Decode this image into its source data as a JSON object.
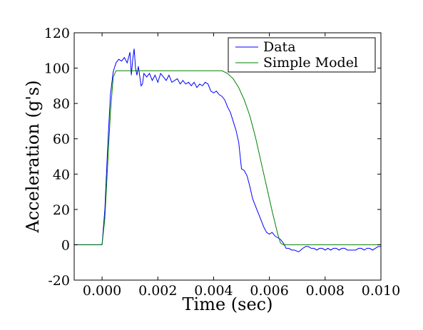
{
  "chart_data": {
    "type": "line",
    "title": "",
    "xlabel": "Time (sec)",
    "ylabel": "Acceleration (g's)",
    "xlim": [
      -0.001,
      0.01
    ],
    "ylim": [
      -20,
      120
    ],
    "xticks": [
      0.0,
      0.002,
      0.004,
      0.006,
      0.008,
      0.01
    ],
    "xtick_labels": [
      "0.000",
      "0.002",
      "0.004",
      "0.006",
      "0.008",
      "0.010"
    ],
    "yticks": [
      -20,
      0,
      20,
      40,
      60,
      80,
      100,
      120
    ],
    "ytick_labels": [
      "-20",
      "0",
      "20",
      "40",
      "60",
      "80",
      "100",
      "120"
    ],
    "grid": false,
    "legend_position": "top-right",
    "series": [
      {
        "name": "Data",
        "color": "#0000ff",
        "x": [
          -0.001,
          -0.0001,
          0.0,
          0.0001,
          0.0002,
          0.0003,
          0.0004,
          0.0005,
          0.0006,
          0.0007,
          0.0008,
          0.0009,
          0.001,
          0.00105,
          0.0011,
          0.00115,
          0.0012,
          0.00125,
          0.0013,
          0.0014,
          0.00145,
          0.0015,
          0.0016,
          0.0017,
          0.0018,
          0.0019,
          0.002,
          0.0021,
          0.0022,
          0.0023,
          0.0024,
          0.0025,
          0.0026,
          0.0027,
          0.0028,
          0.0029,
          0.003,
          0.0031,
          0.0032,
          0.0033,
          0.0034,
          0.0035,
          0.0036,
          0.0037,
          0.0038,
          0.0039,
          0.004,
          0.0041,
          0.0042,
          0.0043,
          0.0044,
          0.0045,
          0.0046,
          0.0047,
          0.0048,
          0.0049,
          0.005,
          0.0051,
          0.0052,
          0.0053,
          0.0054,
          0.0055,
          0.0056,
          0.0057,
          0.0058,
          0.0059,
          0.006,
          0.0061,
          0.0062,
          0.0063,
          0.0064,
          0.0065,
          0.0066,
          0.0067,
          0.0068,
          0.0069,
          0.00705,
          0.0072,
          0.0073,
          0.0074,
          0.0075,
          0.0076,
          0.0077,
          0.0078,
          0.0079,
          0.008,
          0.0081,
          0.0082,
          0.0083,
          0.0084,
          0.0085,
          0.0086,
          0.0087,
          0.0088,
          0.0089,
          0.009,
          0.0091,
          0.0092,
          0.0093,
          0.0094,
          0.0095,
          0.0096,
          0.0097,
          0.0098,
          0.0099,
          0.01
        ],
        "y": [
          0,
          0,
          0,
          20,
          55,
          85,
          98,
          103,
          105,
          104,
          106,
          103,
          109,
          96,
          105,
          111,
          100,
          96,
          101,
          90,
          91,
          97,
          95,
          97,
          93,
          96,
          92,
          97,
          95,
          93,
          96,
          92,
          93,
          94,
          91,
          93,
          91,
          92,
          90,
          92,
          89,
          91,
          90,
          92,
          91,
          87,
          86,
          87,
          85,
          84,
          82,
          78,
          75,
          70,
          65,
          58,
          43,
          42,
          39,
          33,
          26,
          22,
          18,
          14,
          10,
          7,
          6,
          7,
          5,
          4,
          3,
          1,
          -2,
          -2,
          -3,
          -3,
          -4,
          -2,
          -1,
          -1,
          -2,
          -2,
          -3,
          -2,
          -2,
          -3,
          -2,
          -3,
          -2,
          -2,
          -3,
          -2,
          -2,
          -3,
          -3,
          -3,
          -3,
          -2,
          -2,
          -3,
          -2,
          -2,
          -3,
          -2,
          -1,
          -1
        ]
      },
      {
        "name": "Simple Model",
        "color": "#008000",
        "x": [
          -0.001,
          -0.0001,
          0.0,
          0.0001,
          0.0002,
          0.0003,
          0.0004,
          0.0005,
          0.0006,
          0.001,
          0.002,
          0.003,
          0.004,
          0.0043,
          0.0045,
          0.0047,
          0.0049,
          0.0051,
          0.0053,
          0.0055,
          0.0057,
          0.0059,
          0.0061,
          0.0063,
          0.0064,
          0.0065,
          0.007,
          0.008,
          0.009,
          0.01
        ],
        "y": [
          0,
          0,
          0,
          15,
          45,
          75,
          95,
          98.5,
          98.5,
          98.5,
          98.5,
          98.5,
          98.5,
          98.5,
          97,
          94,
          89,
          82,
          73,
          61,
          47,
          33,
          19,
          6,
          1,
          0,
          0,
          0,
          0,
          0
        ]
      }
    ]
  }
}
